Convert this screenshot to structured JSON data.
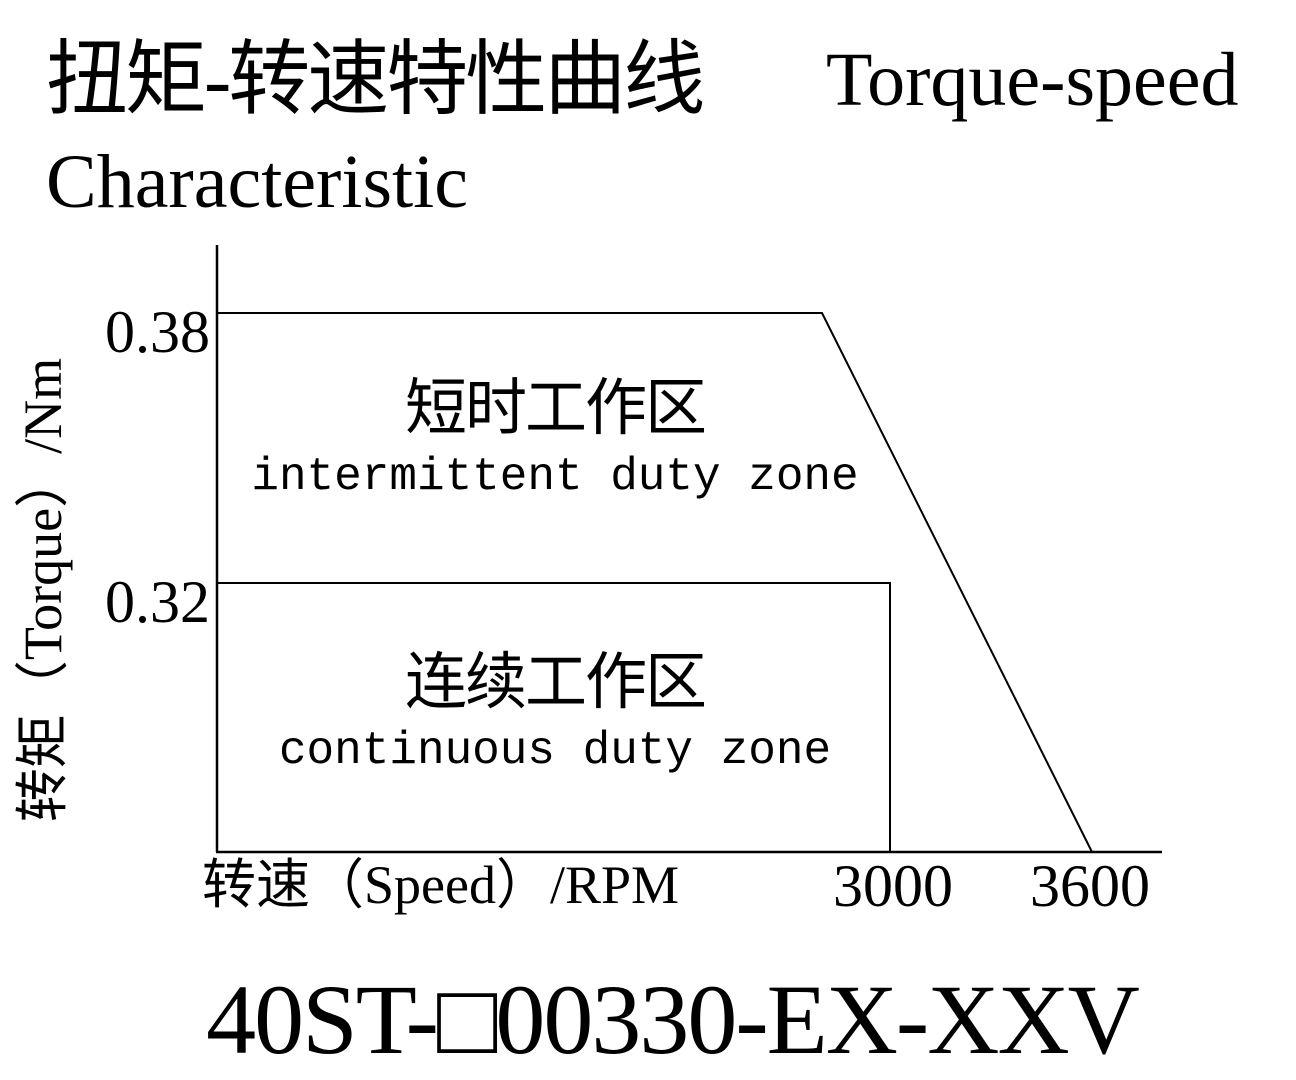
{
  "figure": {
    "title_zh": "扭矩-转速特性曲线",
    "title_en_line1": "Torque-speed",
    "title_en_line2": "Characteristic",
    "model_code": "40ST-□00330-EX-XXV"
  },
  "chart_data": {
    "type": "line",
    "title": "扭矩-转速特性曲线 Torque-speed Characteristic",
    "xlabel": "转速（Speed）/RPM",
    "ylabel": "转矩（Torque）/Nm",
    "x_tick_labels": [
      "3000",
      "3600"
    ],
    "y_tick_labels": [
      "0.38",
      "0.32"
    ],
    "xlim": [
      0,
      3900
    ],
    "ylim": [
      0,
      0.44
    ],
    "grid": false,
    "legend": "none",
    "series": [
      {
        "name": "intermittent duty zone boundary",
        "label_zh": "短时工作区",
        "label_en": "intermittent duty zone",
        "torque_nm": 0.38,
        "points": [
          [
            0,
            0.38
          ],
          [
            2700,
            0.38
          ],
          [
            3600,
            0
          ]
        ]
      },
      {
        "name": "continuous duty zone boundary",
        "label_zh": "连续工作区",
        "label_en": "continuous duty zone",
        "torque_nm": 0.32,
        "points": [
          [
            0,
            0.32
          ],
          [
            3000,
            0.32
          ],
          [
            3000,
            0
          ]
        ]
      }
    ]
  },
  "colors": {
    "ink": "#000000",
    "background": "#ffffff"
  }
}
